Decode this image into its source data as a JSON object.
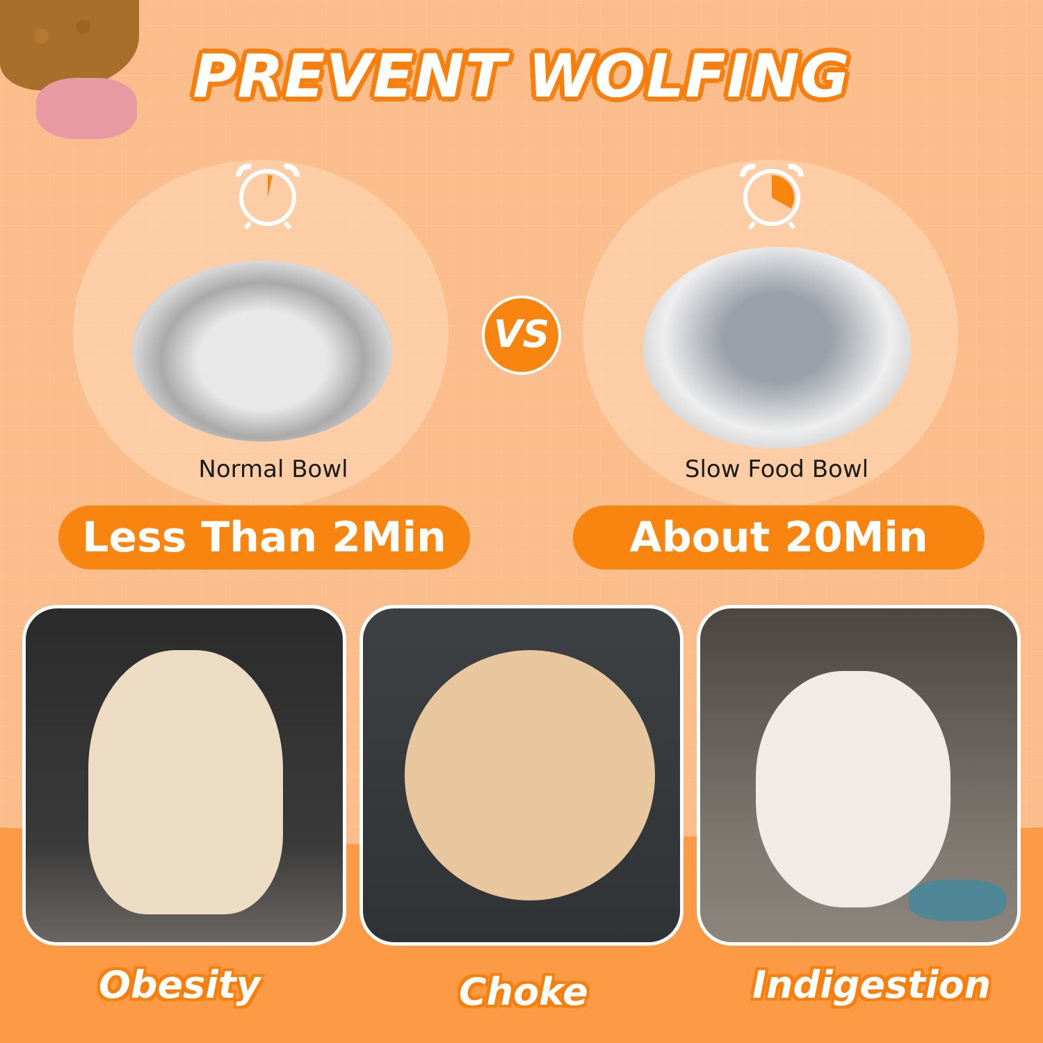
{
  "title": "PREVENT WOLFING",
  "vs_label": "VS",
  "comparison": [
    {
      "bowl_label": "Normal Bowl",
      "time_label": "Less Than 2Min",
      "clock_fill_minutes": 2
    },
    {
      "bowl_label": "Slow Food Bowl",
      "time_label": "About 20Min",
      "clock_fill_minutes": 20
    }
  ],
  "problems": [
    {
      "caption": "Obesity",
      "icon": "overweight-dog-photo"
    },
    {
      "caption": "Choke",
      "icon": "choking-dog-photo"
    },
    {
      "caption": "Indigestion",
      "icon": "sick-dog-photo"
    }
  ],
  "colors": {
    "accent": "#f7850f",
    "background": "#fbbd8c"
  }
}
